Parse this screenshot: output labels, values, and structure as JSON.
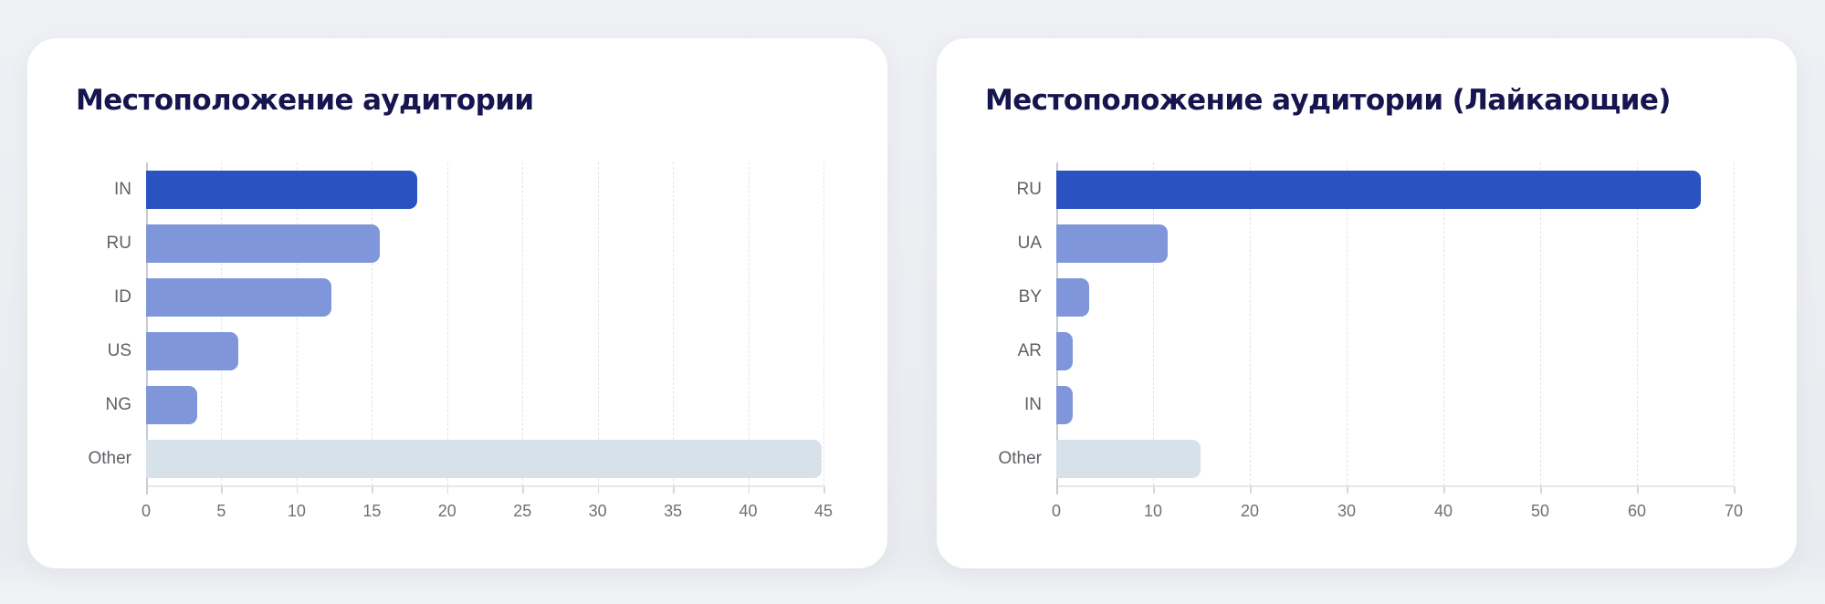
{
  "colors": {
    "primary_bar": "#2a53c1",
    "secondary_bar": "#7f97da",
    "other_bar": "#d7e1ea",
    "title": "#17154f",
    "axis_text": "#6f7075"
  },
  "chart_data": [
    {
      "type": "bar",
      "orientation": "horizontal",
      "title": "Местоположение аудитории",
      "categories": [
        "IN",
        "RU",
        "ID",
        "US",
        "NG",
        "Other"
      ],
      "values": [
        18.0,
        15.5,
        12.3,
        6.1,
        3.4,
        44.9
      ],
      "xlabel": "",
      "ylabel": "",
      "xlim": [
        0,
        45
      ],
      "xticks": [
        0,
        5,
        10,
        15,
        20,
        25,
        30,
        35,
        40,
        45
      ],
      "grid": "vertical dashed",
      "legend": "none"
    },
    {
      "type": "bar",
      "orientation": "horizontal",
      "title": "Местоположение аудитории (Лайкающие)",
      "categories": [
        "RU",
        "UA",
        "BY",
        "AR",
        "IN",
        "Other"
      ],
      "values": [
        66.6,
        11.5,
        3.4,
        1.7,
        1.7,
        14.9
      ],
      "xlabel": "",
      "ylabel": "",
      "xlim": [
        0,
        70
      ],
      "xticks": [
        0,
        10,
        20,
        30,
        40,
        50,
        60,
        70
      ],
      "grid": "vertical dashed",
      "legend": "none"
    }
  ]
}
